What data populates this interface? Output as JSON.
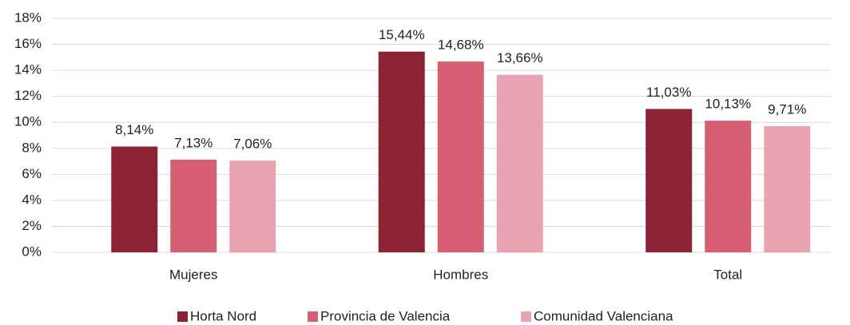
{
  "chart_data": {
    "type": "bar",
    "categories": [
      "Mujeres",
      "Hombres",
      "Total"
    ],
    "series": [
      {
        "name": "Horta Nord",
        "color": "#8b2335",
        "values": [
          8.14,
          15.44,
          11.03
        ],
        "value_labels": [
          "8,14%",
          "15,44%",
          "11,03%"
        ]
      },
      {
        "name": "Provincia de Valencia",
        "color": "#d65f73",
        "values": [
          7.13,
          14.68,
          10.13
        ],
        "value_labels": [
          "7,13%",
          "14,68%",
          "10,13%"
        ]
      },
      {
        "name": "Comunidad Valenciana",
        "color": "#e8a5b1",
        "values": [
          7.06,
          13.66,
          9.71
        ],
        "value_labels": [
          "7,06%",
          "13,66%",
          "9,71%"
        ]
      }
    ],
    "ylim": [
      0,
      18
    ],
    "yticks": [
      {
        "value": 0,
        "label": "0%"
      },
      {
        "value": 2,
        "label": "2%"
      },
      {
        "value": 4,
        "label": "4%"
      },
      {
        "value": 6,
        "label": "6%"
      },
      {
        "value": 8,
        "label": "8%"
      },
      {
        "value": 10,
        "label": "10%"
      },
      {
        "value": 12,
        "label": "12%"
      },
      {
        "value": 14,
        "label": "14%"
      },
      {
        "value": 16,
        "label": "16%"
      },
      {
        "value": 18,
        "label": "18%"
      }
    ],
    "grid": true,
    "legend": "bottom"
  }
}
